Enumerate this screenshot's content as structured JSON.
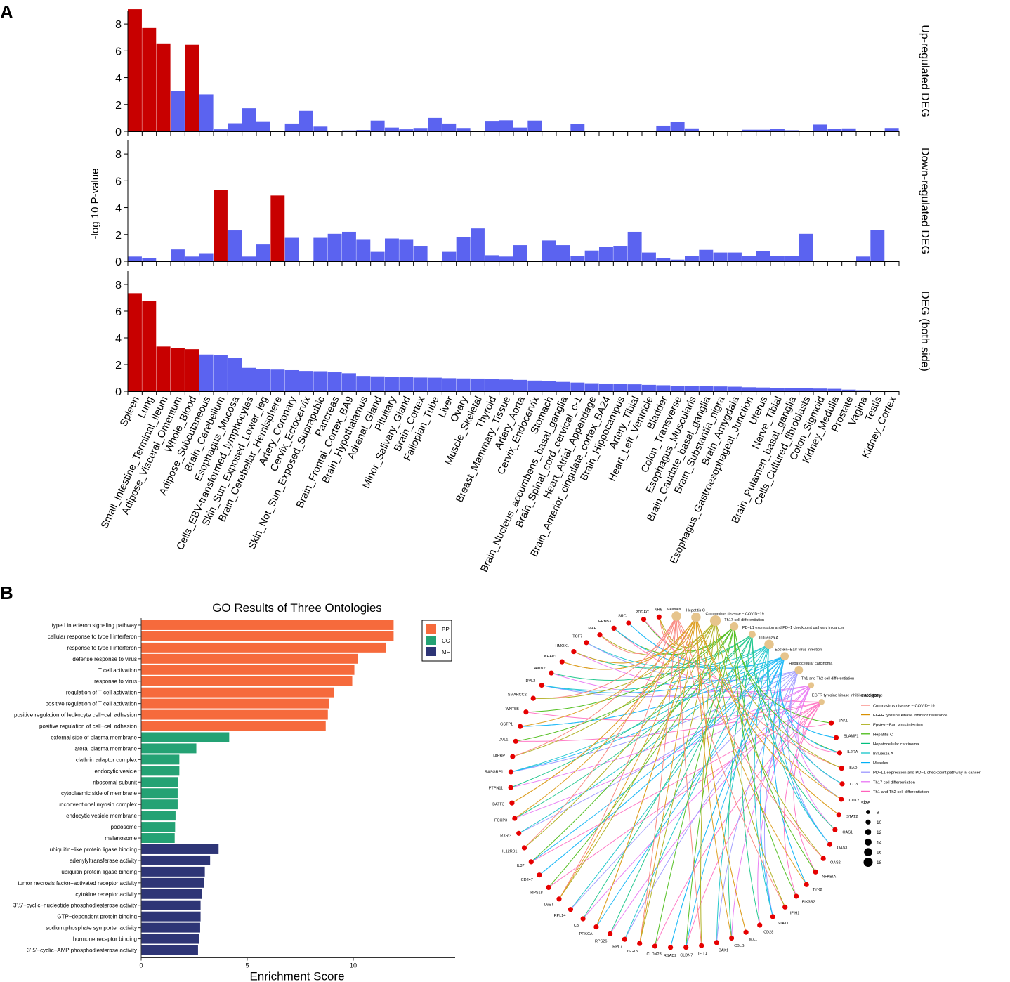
{
  "panel_labels": {
    "a": "A",
    "b": "B"
  },
  "colors": {
    "sig": "#c80000",
    "nonsig": "#5b63f0",
    "BP": "#f66a3c",
    "CC": "#24a274",
    "MF": "#2e3576",
    "gene": "#e60000",
    "pathway": "#e6c48c"
  },
  "chart_data": [
    {
      "type": "bar",
      "title": "",
      "ylabel": "-log 10 P-value",
      "ylim": [
        0,
        9
      ],
      "yticks": [
        0,
        2,
        4,
        6,
        8
      ],
      "categories": [
        "Spleen",
        "Lung",
        "Small_Intestine_Terminal_Ileum",
        "Adipose_Visceral_Omentum",
        "Whole_Blood",
        "Adipose_Subcutaneous",
        "Brain_Cerebellum",
        "Esophagus_Mucosa",
        "Cells_EBV-transformed_lymphocytes",
        "Skin_Sun_Exposed_Lower_leg",
        "Brain_Cerebellar_Hemisphere",
        "Artery_Coronary",
        "Cervix_Ectocervix",
        "Skin_Not_Sun_Exposed_Suprapubic",
        "Pancreas",
        "Brain_Frontal_Cortex_BA9",
        "Brain_Hypothalamus",
        "Adrenal_Gland",
        "Pituitary",
        "Minor_Salivary_Gland",
        "Brain_Cortex",
        "Fallopian_Tube",
        "Liver",
        "Ovary",
        "Muscle_Skeletal",
        "Thyroid",
        "Breast_Mammary_Tissue",
        "Artery_Aorta",
        "Cervix_Endocervix",
        "Stomach",
        "Brain_Nucleus_accumbens_basal_ganglia",
        "Brain_Spinal_cord_cervical_c-1",
        "Heart_Atrial_Appendage",
        "Brain_Anterior_cingulate_cortex_BA24",
        "Brain_Hippocampus",
        "Artery_Tibial",
        "Heart_Left_Ventricle",
        "Bladder",
        "Colon_Transverse",
        "Esophagus_Muscularis",
        "Brain_Caudate_basal_ganglia",
        "Brain_Substantia_nigra",
        "Brain_Amygdala",
        "Esophagus_Gastroesophageal_Junction",
        "Uterus",
        "Nerve_Tibial",
        "Brain_Putamen_basal_ganglia",
        "Cells_Cultured_fibroblasts",
        "Colon_Sigmoid",
        "Kidney_Medulla",
        "Prostate",
        "Vagina",
        "Testis",
        "Kidney_Cortex"
      ],
      "facets": [
        {
          "label": "Up-regulated DEG",
          "values": [
            9.1,
            7.7,
            6.55,
            3.0,
            6.45,
            2.75,
            0.15,
            0.6,
            1.72,
            0.75,
            0.0,
            0.58,
            1.53,
            0.35,
            0.0,
            0.07,
            0.1,
            0.8,
            0.28,
            0.15,
            0.25,
            1.0,
            0.58,
            0.25,
            0.0,
            0.78,
            0.82,
            0.28,
            0.8,
            0.0,
            0.05,
            0.55,
            0.0,
            0.05,
            0.03,
            0.0,
            0.0,
            0.42,
            0.68,
            0.22,
            0.0,
            0.03,
            0.05,
            0.12,
            0.12,
            0.18,
            0.08,
            0.0,
            0.5,
            0.17,
            0.22,
            0.05,
            0.0,
            0.25
          ],
          "significant": [
            0,
            1,
            2,
            4
          ]
        },
        {
          "label": "Down-regulated DEG",
          "values": [
            0.35,
            0.25,
            0.0,
            0.88,
            0.35,
            0.6,
            5.3,
            2.3,
            0.35,
            1.25,
            4.9,
            1.75,
            0.0,
            1.75,
            2.05,
            2.2,
            1.65,
            0.7,
            1.7,
            1.65,
            1.15,
            0.0,
            0.7,
            1.8,
            2.45,
            0.45,
            0.35,
            1.2,
            0.0,
            1.55,
            1.2,
            0.4,
            0.8,
            1.05,
            1.15,
            2.2,
            0.65,
            0.25,
            0.12,
            0.4,
            0.85,
            0.65,
            0.65,
            0.4,
            0.75,
            0.4,
            0.4,
            2.05,
            0.05,
            0.0,
            0.0,
            0.35,
            2.35,
            0.0
          ],
          "significant": [
            6,
            10
          ]
        },
        {
          "label": "DEG (both side)",
          "values": [
            7.35,
            6.75,
            3.35,
            3.25,
            3.15,
            2.75,
            2.7,
            2.5,
            1.75,
            1.65,
            1.62,
            1.58,
            1.52,
            1.5,
            1.42,
            1.35,
            1.15,
            1.12,
            1.08,
            1.05,
            1.03,
            1.02,
            0.98,
            0.96,
            0.95,
            0.93,
            0.88,
            0.85,
            0.8,
            0.75,
            0.7,
            0.65,
            0.6,
            0.58,
            0.55,
            0.52,
            0.48,
            0.45,
            0.42,
            0.4,
            0.38,
            0.36,
            0.34,
            0.3,
            0.28,
            0.26,
            0.24,
            0.22,
            0.2,
            0.18,
            0.12,
            0.08,
            0.05,
            0.03
          ],
          "significant": [
            0,
            1,
            2,
            3,
            4
          ]
        }
      ]
    },
    {
      "type": "bar",
      "orientation": "horizontal",
      "title": "GO Results of Three Ontologies",
      "xlabel": "Enrichment Score",
      "xlim": [
        0,
        14.8
      ],
      "xticks": [
        0,
        5,
        10
      ],
      "legend": [
        {
          "key": "BP",
          "label": "BP"
        },
        {
          "key": "CC",
          "label": "CC"
        },
        {
          "key": "MF",
          "label": "MF"
        }
      ],
      "legend_position": "top-right",
      "terms": [
        {
          "label": "type I interferon signaling pathway",
          "value": 11.9,
          "ontology": "BP"
        },
        {
          "label": "cellular response to type I interferon",
          "value": 11.9,
          "ontology": "BP"
        },
        {
          "label": "response to type I interferon",
          "value": 11.55,
          "ontology": "BP"
        },
        {
          "label": "defense response to virus",
          "value": 10.2,
          "ontology": "BP"
        },
        {
          "label": "T cell activation",
          "value": 10.05,
          "ontology": "BP"
        },
        {
          "label": "response to virus",
          "value": 9.95,
          "ontology": "BP"
        },
        {
          "label": "regulation of T cell activation",
          "value": 9.1,
          "ontology": "BP"
        },
        {
          "label": "positive regulation of T cell activation",
          "value": 8.85,
          "ontology": "BP"
        },
        {
          "label": "positive regulation of leukocyte cell−cell adhesion",
          "value": 8.8,
          "ontology": "BP"
        },
        {
          "label": "positive regulation of cell−cell adhesion",
          "value": 8.7,
          "ontology": "BP"
        },
        {
          "label": "external side of plasma membrane",
          "value": 4.15,
          "ontology": "CC"
        },
        {
          "label": "lateral plasma membrane",
          "value": 2.6,
          "ontology": "CC"
        },
        {
          "label": "clathrin adaptor complex",
          "value": 1.8,
          "ontology": "CC"
        },
        {
          "label": "endocytic vesicle",
          "value": 1.8,
          "ontology": "CC"
        },
        {
          "label": "ribosomal subunit",
          "value": 1.75,
          "ontology": "CC"
        },
        {
          "label": "cytoplasmic side of membrane",
          "value": 1.72,
          "ontology": "CC"
        },
        {
          "label": "unconventional myosin complex",
          "value": 1.72,
          "ontology": "CC"
        },
        {
          "label": "endocytic vesicle membrane",
          "value": 1.62,
          "ontology": "CC"
        },
        {
          "label": "podosome",
          "value": 1.6,
          "ontology": "CC"
        },
        {
          "label": "melanosome",
          "value": 1.58,
          "ontology": "CC"
        },
        {
          "label": "ubiquitin−like protein ligase binding",
          "value": 3.65,
          "ontology": "MF"
        },
        {
          "label": "adenylyltransferase activity",
          "value": 3.25,
          "ontology": "MF"
        },
        {
          "label": "ubiquitin protein ligase binding",
          "value": 3.0,
          "ontology": "MF"
        },
        {
          "label": "tumor necrosis factor−activated receptor activity",
          "value": 2.95,
          "ontology": "MF"
        },
        {
          "label": "cytokine receptor activity",
          "value": 2.85,
          "ontology": "MF"
        },
        {
          "label": "3',5'−cyclic−nucleotide phosphodiesterase activity",
          "value": 2.8,
          "ontology": "MF"
        },
        {
          "label": "GTP−dependent protein binding",
          "value": 2.8,
          "ontology": "MF"
        },
        {
          "label": "sodium:phosphate symporter activity",
          "value": 2.78,
          "ontology": "MF"
        },
        {
          "label": "hormone receptor binding",
          "value": 2.72,
          "ontology": "MF"
        },
        {
          "label": "3',5'−cyclic−AMP phosphodiesterase activity",
          "value": 2.68,
          "ontology": "MF"
        }
      ]
    },
    {
      "type": "network",
      "layout": "circular cnetplot",
      "pathways": [
        {
          "label": "Measles",
          "size": 16
        },
        {
          "label": "Hepatitis C",
          "size": 16
        },
        {
          "label": "Coronavirus disease − COVID−19",
          "size": 18
        },
        {
          "label": "Th17 cell differentiation",
          "size": 14
        },
        {
          "label": "PD−L1 expression and PD−1 checkpoint pathway in cancer",
          "size": 12
        },
        {
          "label": "Influenza A",
          "size": 16
        },
        {
          "label": "Epstein−Barr virus infection",
          "size": 14
        },
        {
          "label": "Hepatocellular carcinoma",
          "size": 14
        },
        {
          "label": "Th1 and Th2 cell differentiation",
          "size": 10
        },
        {
          "label": "EGFR tyrosine kinase inhibitor resistance",
          "size": 10
        }
      ],
      "genes": [
        "NR6",
        "PDGFC",
        "SRC",
        "ERBB3",
        "MAF",
        "TCF7",
        "HMOX1",
        "KEAP1",
        "AXIN2",
        "DVL2",
        "SMARCC2",
        "WNT5B",
        "GSTP1",
        "DVL1",
        "TAPBP",
        "RASGRP1",
        "PTPN11",
        "BATF3",
        "FOXP3",
        "RXRG",
        "IL12RB1",
        "IL37",
        "CD247",
        "RPS18",
        "IL6ST",
        "RPL14",
        "C3",
        "PRKCA",
        "RPS26",
        "RPL7",
        "ISG15",
        "CLDN23",
        "RSAD2",
        "CLDN7",
        "IFIT1",
        "BAK1",
        "CBLB",
        "MX1",
        "CD28",
        "STAT1",
        "IFIH1",
        "PIK3R2",
        "TYK2",
        "NFKBIA",
        "OAS2",
        "OAS3",
        "OAS1",
        "STAT2",
        "CDK2",
        "CD3D",
        "BAD",
        "IL2RA",
        "SLAMF1",
        "JAK1"
      ],
      "legend_category_title": "category",
      "legend_categories": [
        {
          "label": "Coronavirus disease − COVID−19",
          "color": "#f8766d"
        },
        {
          "label": "EGFR tyrosine kinase inhibitor resistance",
          "color": "#d89000"
        },
        {
          "label": "Epstein−Barr virus infection",
          "color": "#a3a500"
        },
        {
          "label": "Hepatitis C",
          "color": "#39b600"
        },
        {
          "label": "Hepatocellular carcinoma",
          "color": "#00bf7d"
        },
        {
          "label": "Influenza A",
          "color": "#00bfc4"
        },
        {
          "label": "Measles",
          "color": "#00b0f6"
        },
        {
          "label": "PD−L1 expression and PD−1 checkpoint pathway in cancer",
          "color": "#9590ff"
        },
        {
          "label": "Th17 cell differentiation",
          "color": "#e76bf3"
        },
        {
          "label": "Th1 and Th2 cell differentiation",
          "color": "#ff62bc"
        }
      ],
      "legend_size_title": "size",
      "legend_sizes": [
        8,
        10,
        12,
        14,
        16,
        18
      ]
    }
  ]
}
